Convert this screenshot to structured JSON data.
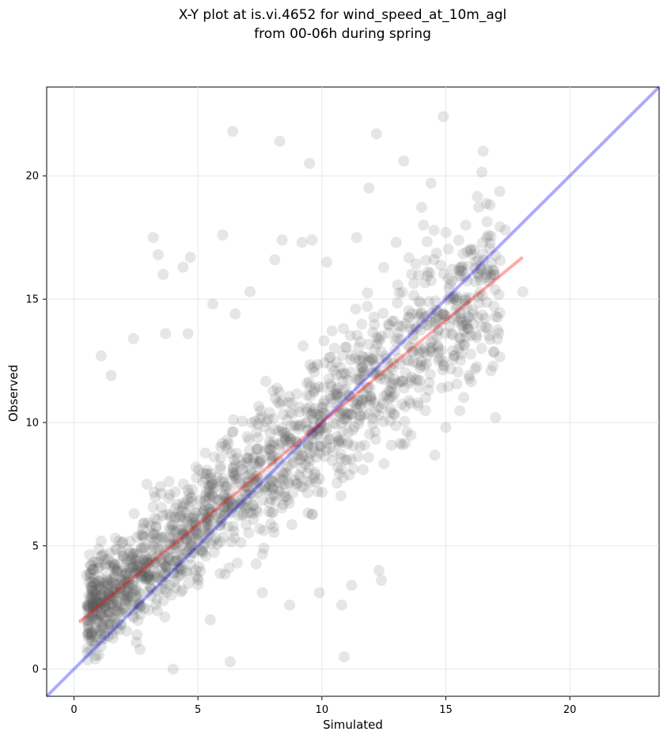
{
  "chart_data": {
    "type": "scatter",
    "title_line1": "X-Y plot at is.vi.4652 for wind_speed_at_10m_agl",
    "title_line2": "from 00-06h during spring",
    "xlabel": "Simulated",
    "ylabel": "Observed",
    "xlim": [
      -1.1,
      23.6
    ],
    "ylim": [
      -1.1,
      23.6
    ],
    "xticks": [
      0,
      5,
      10,
      15,
      20
    ],
    "yticks": [
      0,
      5,
      10,
      15,
      20
    ],
    "x_tick_labels": [
      "0",
      "5",
      "10",
      "15",
      "20"
    ],
    "y_tick_labels": [
      "0",
      "5",
      "10",
      "15",
      "20"
    ],
    "grid": true,
    "point_color": "#555555",
    "one_to_one_line": {
      "color": "#0000ff",
      "x": [
        -1.1,
        23.6
      ],
      "y": [
        -1.1,
        23.6
      ]
    },
    "fit_line": {
      "color": "#ff0000",
      "x": [
        0.2,
        18.1
      ],
      "y": [
        1.9,
        16.7
      ]
    },
    "outliers": [
      [
        6.4,
        21.8
      ],
      [
        8.3,
        21.4
      ],
      [
        9.5,
        20.5
      ],
      [
        12.2,
        21.7
      ],
      [
        14.9,
        22.4
      ],
      [
        16.5,
        21.0
      ],
      [
        13.3,
        20.6
      ],
      [
        11.9,
        19.5
      ],
      [
        3.2,
        17.5
      ],
      [
        6.0,
        17.6
      ],
      [
        3.4,
        16.8
      ],
      [
        4.7,
        16.7
      ],
      [
        4.4,
        16.3
      ],
      [
        3.6,
        16.0
      ],
      [
        8.1,
        16.6
      ],
      [
        8.4,
        17.4
      ],
      [
        9.2,
        17.3
      ],
      [
        9.6,
        17.4
      ],
      [
        10.2,
        16.5
      ],
      [
        11.4,
        17.5
      ],
      [
        14.1,
        18.0
      ],
      [
        14.4,
        19.7
      ],
      [
        15.0,
        17.7
      ],
      [
        15.8,
        18.0
      ],
      [
        17.4,
        17.8
      ],
      [
        18.1,
        15.3
      ],
      [
        17.0,
        10.2
      ],
      [
        15.0,
        9.8
      ],
      [
        10.9,
        0.5
      ],
      [
        10.8,
        2.6
      ],
      [
        11.2,
        3.4
      ],
      [
        12.3,
        4.0
      ],
      [
        12.4,
        3.6
      ],
      [
        9.9,
        3.1
      ],
      [
        8.7,
        2.6
      ],
      [
        7.6,
        3.1
      ],
      [
        6.3,
        0.3
      ],
      [
        4.0,
        0.0
      ],
      [
        5.5,
        2.0
      ],
      [
        1.1,
        12.7
      ],
      [
        1.5,
        11.9
      ],
      [
        2.4,
        13.4
      ],
      [
        3.7,
        13.6
      ],
      [
        4.6,
        13.6
      ],
      [
        6.5,
        14.4
      ],
      [
        5.6,
        14.8
      ],
      [
        7.1,
        15.3
      ],
      [
        13.0,
        17.3
      ],
      [
        16.3,
        16.6
      ],
      [
        15.3,
        15.1
      ]
    ],
    "cluster_centers": [
      [
        2.0,
        2.5
      ],
      [
        3.5,
        4.0
      ],
      [
        5.0,
        5.5
      ],
      [
        6.2,
        6.8
      ],
      [
        7.4,
        7.8
      ],
      [
        8.6,
        9.0
      ],
      [
        9.8,
        10.2
      ],
      [
        11.0,
        11.4
      ],
      [
        12.3,
        12.7
      ],
      [
        13.8,
        14.0
      ]
    ],
    "point_count_estimate": 1600
  }
}
